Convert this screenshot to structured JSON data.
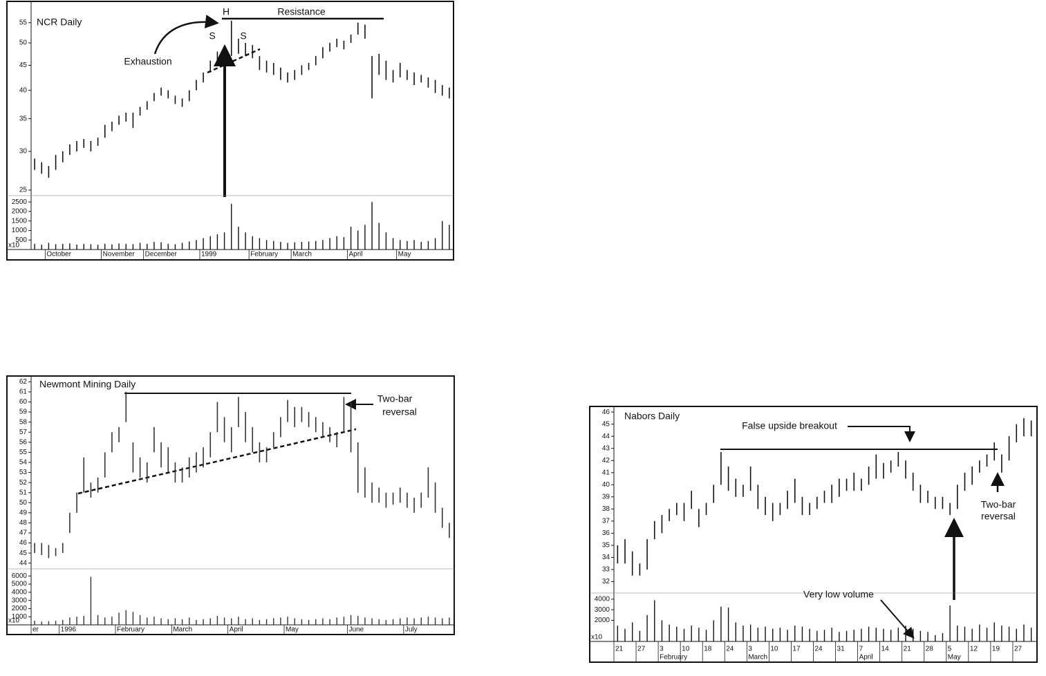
{
  "chart_data": [
    {
      "type": "hilo",
      "title": "NCR Daily",
      "log_scale": true,
      "categories": [
        null,
        null,
        "October",
        null,
        null,
        null,
        null,
        null,
        null,
        null,
        "November",
        null,
        null,
        null,
        null,
        null,
        "December",
        null,
        null,
        null,
        null,
        null,
        null,
        null,
        "1999",
        null,
        null,
        null,
        null,
        null,
        null,
        "February",
        null,
        null,
        null,
        null,
        null,
        "March",
        null,
        null,
        null,
        null,
        null,
        null,
        null,
        "April",
        null,
        null,
        null,
        null,
        null,
        null,
        "May",
        null,
        null,
        null,
        null,
        null,
        null,
        null
      ],
      "high": [
        29,
        28.5,
        28,
        29.5,
        30,
        31,
        31.5,
        31.8,
        31.5,
        32,
        34,
        34.5,
        35.5,
        36,
        36,
        37,
        38,
        39.5,
        40.5,
        40,
        39,
        38.5,
        40,
        42,
        43.5,
        46,
        48,
        49,
        55.5,
        51,
        50,
        49.5,
        47,
        46,
        45.5,
        44.5,
        43.5,
        44,
        45,
        45.5,
        47,
        49,
        50,
        51,
        50.5,
        52,
        55,
        54.5,
        47,
        47.5,
        46,
        44,
        45.5,
        44,
        43.5,
        43,
        42.5,
        42,
        41,
        40.5
      ],
      "low": [
        27.5,
        27,
        26.5,
        27.5,
        28.5,
        29.5,
        30,
        30.5,
        30,
        30.8,
        32,
        33,
        34,
        34.5,
        33.5,
        35.5,
        36.5,
        38,
        39,
        38.5,
        37.5,
        37,
        38,
        40,
        41.5,
        43.5,
        45,
        46.5,
        47,
        47.5,
        47,
        46.5,
        44,
        43.5,
        43,
        42,
        41.5,
        42,
        43,
        44,
        45,
        46.5,
        48,
        49,
        48.5,
        50,
        52,
        51,
        38.5,
        43,
        42,
        41.5,
        42.5,
        42,
        41,
        41.5,
        40.5,
        39.5,
        39,
        38.5
      ],
      "volume": [
        300,
        250,
        350,
        280,
        300,
        320,
        260,
        300,
        280,
        250,
        300,
        270,
        320,
        300,
        280,
        350,
        300,
        400,
        380,
        300,
        280,
        350,
        420,
        500,
        600,
        700,
        800,
        900,
        2400,
        1200,
        900,
        700,
        600,
        500,
        450,
        400,
        350,
        380,
        400,
        420,
        450,
        500,
        600,
        700,
        650,
        1200,
        1000,
        1300,
        2500,
        1400,
        900,
        600,
        500,
        450,
        500,
        400,
        450,
        600,
        1500,
        1300
      ],
      "ylim": [
        24.2,
        60.6
      ],
      "yticks": [
        25,
        30,
        35,
        40,
        45,
        50,
        55
      ],
      "volume_lim": [
        0,
        2760
      ],
      "volume_ticks": [
        500,
        1000,
        1500,
        2000,
        2500
      ],
      "volume_unit": "x10",
      "color": "#111111",
      "annotations": [
        "H",
        "S",
        "S",
        "Resistance",
        "Exhaustion"
      ]
    },
    {
      "type": "hilo",
      "title": "Newmont Mining Daily",
      "log_scale": false,
      "categories": [
        "er",
        null,
        null,
        null,
        "1996",
        null,
        null,
        null,
        null,
        null,
        null,
        null,
        "February",
        null,
        null,
        null,
        null,
        null,
        null,
        null,
        "March",
        null,
        null,
        null,
        null,
        null,
        null,
        null,
        "April",
        null,
        null,
        null,
        null,
        null,
        null,
        null,
        "May",
        null,
        null,
        null,
        null,
        null,
        null,
        null,
        null,
        "June",
        null,
        null,
        null,
        null,
        null,
        null,
        null,
        "July",
        null,
        null,
        null,
        null,
        null,
        null
      ],
      "high": [
        46,
        46,
        45.8,
        45.5,
        46,
        49,
        51,
        54.5,
        52,
        52.5,
        55,
        57,
        57.5,
        61,
        56,
        54.5,
        54,
        57.5,
        56,
        55.5,
        54,
        53.5,
        54.5,
        55,
        55.5,
        57,
        60,
        58.5,
        57.5,
        60.5,
        59,
        57.5,
        56,
        55.5,
        57,
        58.5,
        60.2,
        59.5,
        59.5,
        59,
        58.5,
        58,
        57.5,
        57,
        60.5,
        60,
        56,
        53.5,
        52,
        51.5,
        51,
        51,
        51.5,
        51,
        50.5,
        51,
        53.5,
        52,
        49.5,
        48
      ],
      "low": [
        45,
        44.8,
        44.5,
        44.7,
        45,
        47,
        49,
        51,
        50.5,
        51,
        52.5,
        55,
        56,
        58,
        53,
        52.5,
        52,
        55,
        53.5,
        53,
        52,
        52,
        52.5,
        53,
        53.5,
        54.5,
        57,
        56,
        55,
        57.5,
        56,
        55,
        54,
        54,
        55.5,
        56.5,
        58,
        57.5,
        58,
        57.5,
        57,
        56.5,
        56,
        55.5,
        57,
        55,
        51,
        50.5,
        50,
        50,
        49.5,
        49.8,
        50,
        49.5,
        49,
        49.5,
        50.5,
        49,
        47.5,
        46.5
      ],
      "volume": [
        500,
        400,
        450,
        500,
        600,
        900,
        1000,
        1100,
        5900,
        1200,
        900,
        1000,
        1500,
        1800,
        1600,
        1200,
        900,
        1000,
        800,
        700,
        800,
        700,
        900,
        600,
        700,
        800,
        1100,
        900,
        800,
        1000,
        700,
        800,
        600,
        700,
        800,
        900,
        1000,
        800,
        700,
        600,
        700,
        800,
        700,
        900,
        1000,
        1200,
        1100,
        900,
        800,
        700,
        600,
        700,
        800,
        900,
        800,
        900,
        1000,
        900,
        800,
        900
      ],
      "ylim": [
        43.5,
        62.3
      ],
      "yticks": [
        44,
        45,
        46,
        47,
        48,
        49,
        50,
        51,
        52,
        53,
        54,
        55,
        56,
        57,
        58,
        59,
        60,
        61,
        62
      ],
      "volume_lim": [
        0,
        6700
      ],
      "volume_ticks": [
        1000,
        2000,
        3000,
        4000,
        5000,
        6000
      ],
      "volume_unit": "x10",
      "color": "#333333",
      "annotations": [
        "Two-bar",
        "reversal"
      ]
    },
    {
      "type": "hilo",
      "title": "Nabors Daily",
      "log_scale": false,
      "categories": [
        "21",
        null,
        null,
        "27",
        null,
        null,
        "3",
        null,
        null,
        "10",
        null,
        null,
        "18",
        null,
        null,
        "24",
        null,
        null,
        "3",
        null,
        null,
        "10",
        null,
        null,
        "17",
        null,
        null,
        "24",
        null,
        null,
        "31",
        null,
        null,
        "7",
        null,
        null,
        "14",
        null,
        null,
        "21",
        null,
        null,
        "28",
        null,
        null,
        "5",
        null,
        null,
        "12",
        null,
        null,
        "19",
        null,
        null,
        "27",
        null,
        null
      ],
      "month_labels": [
        null,
        null,
        null,
        null,
        null,
        null,
        "February",
        null,
        null,
        null,
        null,
        null,
        null,
        null,
        null,
        null,
        null,
        null,
        "March",
        null,
        null,
        null,
        null,
        null,
        null,
        null,
        null,
        null,
        null,
        null,
        null,
        null,
        null,
        "April",
        null,
        null,
        null,
        null,
        null,
        null,
        null,
        null,
        null,
        null,
        null,
        "May",
        null,
        null,
        null,
        null,
        null,
        null,
        null,
        null,
        null,
        null,
        null
      ],
      "high": [
        35,
        35.5,
        34.5,
        33.5,
        35.5,
        37,
        37.5,
        38,
        38.5,
        38.5,
        39.5,
        38,
        38.5,
        40,
        42.7,
        41.5,
        40.5,
        40,
        41.5,
        40,
        39,
        38.5,
        38.5,
        39.5,
        40.5,
        39,
        38.5,
        39,
        39.5,
        40,
        40.5,
        40.5,
        41,
        40.5,
        41.5,
        42.5,
        41.8,
        42,
        42.7,
        42,
        41,
        40,
        39.5,
        39,
        39,
        38.5,
        40,
        41,
        41.5,
        42,
        42.5,
        43.5,
        42.5,
        44,
        45,
        45.5,
        45.3
      ],
      "low": [
        33.5,
        33.5,
        32.5,
        32.5,
        33,
        35.5,
        36,
        37,
        37.5,
        37,
        38,
        36.5,
        37.5,
        38.5,
        40,
        39.5,
        39,
        39,
        39.5,
        38,
        37.5,
        37,
        37.5,
        38,
        38.5,
        37.5,
        37.5,
        38,
        38.5,
        38.5,
        39,
        39.5,
        39.5,
        39.5,
        40,
        40.5,
        40.5,
        41,
        41.5,
        40.5,
        39.5,
        38.5,
        38.5,
        38,
        38,
        37.5,
        38,
        39.5,
        40,
        41,
        41.5,
        42,
        41,
        42,
        43.5,
        44,
        44
      ],
      "volume": [
        1500,
        1200,
        1800,
        1000,
        2500,
        3900,
        2000,
        1600,
        1400,
        1200,
        1500,
        1300,
        1100,
        2000,
        3300,
        3200,
        1800,
        1500,
        1600,
        1300,
        1400,
        1200,
        1300,
        1100,
        1500,
        1400,
        1200,
        1000,
        1100,
        1300,
        900,
        1000,
        1100,
        1200,
        1400,
        1300,
        1200,
        1100,
        1300,
        1500,
        1200,
        1000,
        900,
        600,
        800,
        3400,
        1500,
        1400,
        1200,
        1600,
        1300,
        1800,
        1500,
        1400,
        1200,
        1600,
        1300
      ],
      "ylim": [
        31.4,
        46.35
      ],
      "yticks": [
        32,
        33,
        34,
        35,
        36,
        37,
        38,
        39,
        40,
        41,
        42,
        43,
        44,
        45,
        46
      ],
      "volume_lim": [
        0,
        4450
      ],
      "volume_ticks": [
        2000,
        3000,
        4000
      ],
      "volume_unit": "x10",
      "color": "#111111",
      "annotations": [
        "False upside breakout",
        "Very low volume",
        "Two-bar",
        "reversal"
      ]
    }
  ]
}
